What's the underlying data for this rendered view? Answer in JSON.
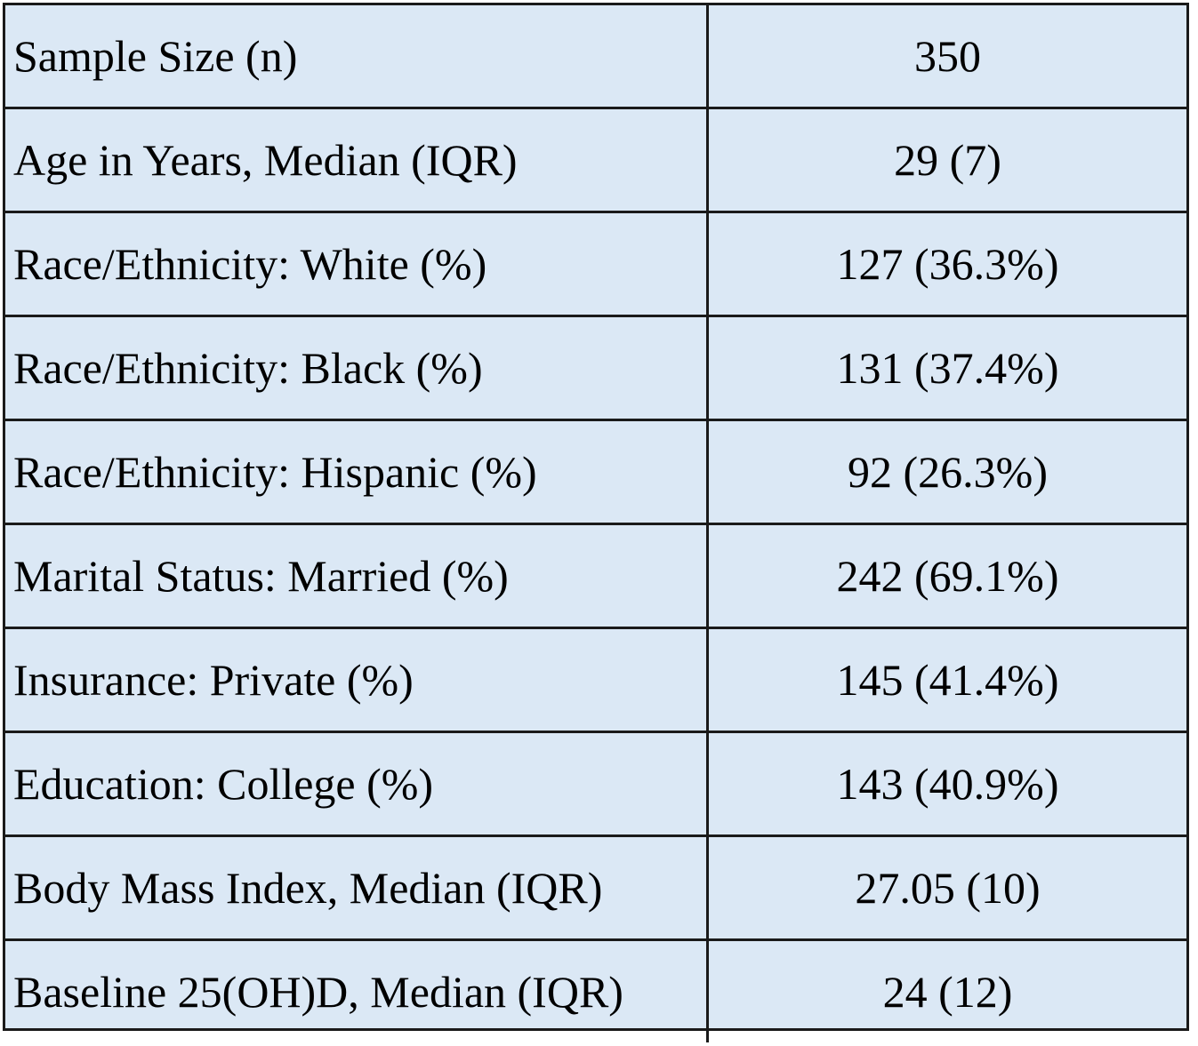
{
  "table": {
    "rows": [
      {
        "label": "Sample Size (n)",
        "value": "350"
      },
      {
        "label": "Age in Years, Median (IQR)",
        "value": "29 (7)"
      },
      {
        "label": "Race/Ethnicity: White (%)",
        "value": "127 (36.3%)"
      },
      {
        "label": "Race/Ethnicity: Black (%)",
        "value": "131 (37.4%)"
      },
      {
        "label": "Race/Ethnicity: Hispanic (%)",
        "value": "92 (26.3%)"
      },
      {
        "label": "Marital Status: Married (%)",
        "value": "242 (69.1%)"
      },
      {
        "label": "Insurance: Private (%)",
        "value": "145 (41.4%)"
      },
      {
        "label": "Education: College (%)",
        "value": "143 (40.9%)"
      },
      {
        "label": "Body Mass Index, Median (IQR)",
        "value": "27.05 (10)"
      },
      {
        "label": "Baseline 25(OH)D, Median (IQR)",
        "value": "24 (12)"
      }
    ],
    "colors": {
      "cell_background": "#dbe8f5",
      "border": "#1a1a1a",
      "text": "#000000"
    }
  }
}
